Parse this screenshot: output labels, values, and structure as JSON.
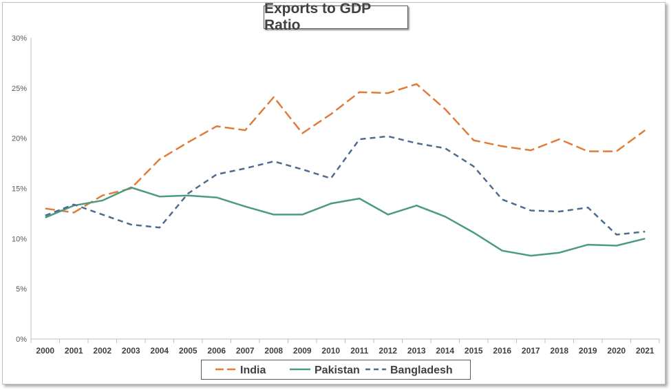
{
  "chart_data": {
    "type": "line",
    "title": "Exports to GDP Ratio",
    "categories": [
      "2000",
      "2001",
      "2002",
      "2003",
      "2004",
      "2005",
      "2006",
      "2007",
      "2008",
      "2009",
      "2010",
      "2011",
      "2012",
      "2013",
      "2014",
      "2015",
      "2016",
      "2017",
      "2018",
      "2019",
      "2020",
      "2021"
    ],
    "y_ticks": [
      "0%",
      "5%",
      "10%",
      "15%",
      "20%",
      "25%",
      "30%"
    ],
    "ylim": [
      0,
      30
    ],
    "grid": false,
    "legend_position": "bottom",
    "series": [
      {
        "name": "India",
        "color": "#e07b39",
        "dash": "long-dash",
        "values": [
          13.0,
          12.6,
          14.3,
          15.0,
          17.9,
          19.6,
          21.2,
          20.8,
          24.1,
          20.5,
          22.4,
          24.6,
          24.5,
          25.4,
          22.9,
          19.8,
          19.2,
          18.8,
          19.9,
          18.7,
          18.7,
          20.8
        ]
      },
      {
        "name": "Pakistan",
        "color": "#4a9a84",
        "dash": "solid",
        "values": [
          12.1,
          13.3,
          13.8,
          15.1,
          14.2,
          14.3,
          14.1,
          13.2,
          12.4,
          12.4,
          13.5,
          14.0,
          12.4,
          13.3,
          12.2,
          10.6,
          8.8,
          8.3,
          8.6,
          9.4,
          9.3,
          10.0
        ]
      },
      {
        "name": "Bangladesh",
        "color": "#4f6a8f",
        "dash": "dash",
        "values": [
          12.3,
          13.4,
          12.4,
          11.4,
          11.1,
          14.5,
          16.4,
          17.0,
          17.7,
          16.9,
          16.0,
          19.9,
          20.2,
          19.5,
          19.0,
          17.2,
          13.9,
          12.8,
          12.7,
          13.1,
          10.4,
          10.7
        ]
      }
    ]
  }
}
